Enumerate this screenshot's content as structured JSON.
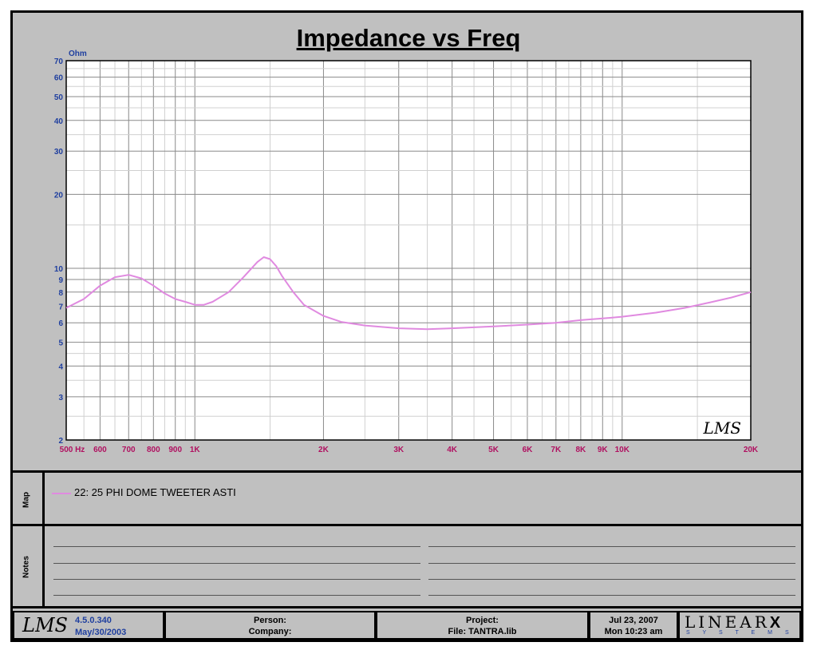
{
  "title": "Impedance vs Freq",
  "chart_data": {
    "type": "line",
    "title": "Impedance vs Freq",
    "x_scale": "log",
    "y_scale": "log",
    "xlim": [
      500,
      20000
    ],
    "ylim": [
      2,
      70
    ],
    "ylabel": "Ohm",
    "xlabel": "Hz",
    "grid": true,
    "y_ticks": [
      2,
      3,
      4,
      5,
      6,
      7,
      8,
      9,
      10,
      20,
      30,
      40,
      50,
      60,
      70
    ],
    "y_tick_labels": [
      "2",
      "3",
      "4",
      "5",
      "6",
      "7",
      "8",
      "9",
      "10",
      "20",
      "30",
      "40",
      "50",
      "60",
      "70"
    ],
    "x_ticks": [
      500,
      600,
      700,
      800,
      900,
      1000,
      2000,
      3000,
      4000,
      5000,
      6000,
      7000,
      8000,
      9000,
      10000,
      20000
    ],
    "x_tick_labels": [
      "500",
      "600",
      "700",
      "800",
      "900",
      "1K",
      "2K",
      "3K",
      "4K",
      "5K",
      "6K",
      "7K",
      "8K",
      "9K",
      "10K",
      "20K"
    ],
    "x_unit_label": "Hz",
    "series": [
      {
        "name": "22: 25 PHI DOME TWEETER ASTI",
        "color": "#e08ae0",
        "x": [
          500,
          550,
          600,
          650,
          700,
          750,
          800,
          850,
          900,
          950,
          1000,
          1050,
          1100,
          1200,
          1300,
          1400,
          1450,
          1500,
          1550,
          1600,
          1700,
          1800,
          2000,
          2200,
          2500,
          3000,
          3500,
          4000,
          5000,
          6000,
          7000,
          8000,
          9000,
          10000,
          12000,
          14000,
          16000,
          18000,
          20000
        ],
        "y": [
          6.9,
          7.5,
          8.5,
          9.2,
          9.4,
          9.1,
          8.5,
          7.9,
          7.5,
          7.3,
          7.1,
          7.1,
          7.3,
          8.0,
          9.2,
          10.6,
          11.1,
          10.9,
          10.2,
          9.3,
          8.0,
          7.1,
          6.4,
          6.05,
          5.85,
          5.7,
          5.65,
          5.7,
          5.8,
          5.9,
          6.0,
          6.15,
          6.25,
          6.35,
          6.6,
          6.9,
          7.25,
          7.6,
          8.0
        ]
      }
    ]
  },
  "watermark": "LMS",
  "map": {
    "label": "Map",
    "legend_text": "22: 25 PHI DOME TWEETER ASTI"
  },
  "notes": {
    "label": "Notes"
  },
  "footer": {
    "logo": "LMS",
    "version": "4.5.0.340",
    "version_date": "May/30/2003",
    "person_label": "Person:",
    "company_label": "Company:",
    "project_label": "Project:",
    "file_label": "File: TANTRA.lib",
    "date": "Jul 23, 2007",
    "time": "Mon 10:23 am",
    "brand_main": "LINEAR",
    "brand_x": "X",
    "brand_sub": "S Y S T E M S"
  }
}
